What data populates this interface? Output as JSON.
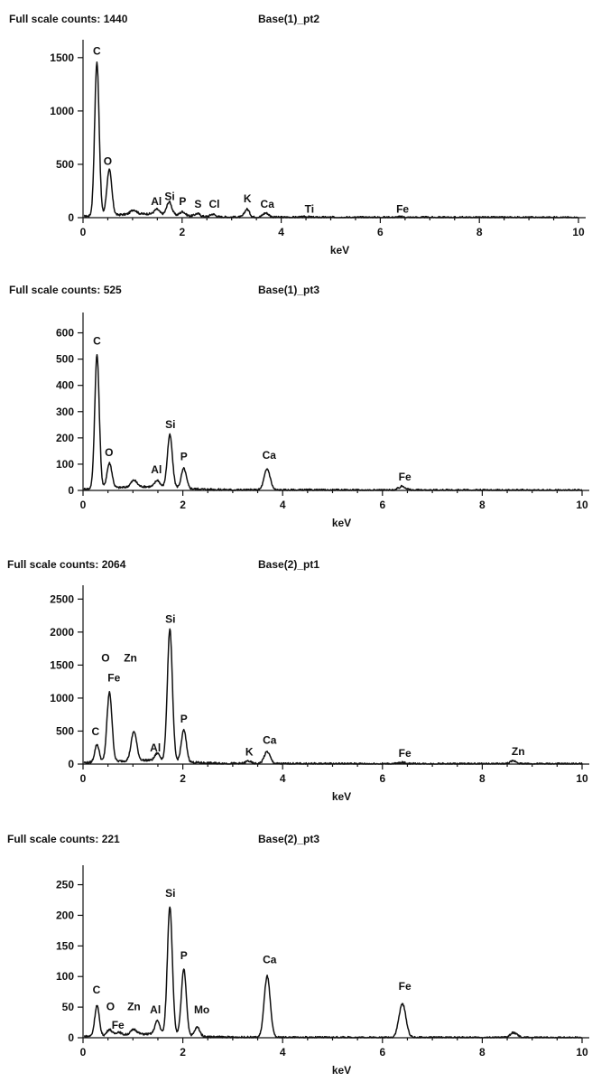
{
  "chart_data": [
    {
      "type": "line",
      "full_scale_label": "Full scale counts: 1440",
      "title": "Base(1)_pt2",
      "xlabel": "keV",
      "ylabel": "",
      "xlim": [
        0,
        10
      ],
      "ylim": [
        0,
        1600
      ],
      "xticks": [
        0,
        2,
        4,
        6,
        8,
        10
      ],
      "yticks": [
        0,
        500,
        1000,
        1500
      ],
      "peaks": [
        {
          "label": "C",
          "x": 0.28,
          "height": 1440,
          "width": 0.045
        },
        {
          "label": "O",
          "x": 0.53,
          "height": 430,
          "width": 0.05
        },
        {
          "label": "",
          "x": 1.02,
          "height": 40,
          "width": 0.06
        },
        {
          "label": "Al",
          "x": 1.49,
          "height": 45,
          "width": 0.05
        },
        {
          "label": "Si",
          "x": 1.74,
          "height": 120,
          "width": 0.05
        },
        {
          "label": "P",
          "x": 2.01,
          "height": 35,
          "width": 0.05
        },
        {
          "label": "S",
          "x": 2.31,
          "height": 25,
          "width": 0.05
        },
        {
          "label": "Cl",
          "x": 2.62,
          "height": 25,
          "width": 0.05
        },
        {
          "label": "K",
          "x": 3.31,
          "height": 75,
          "width": 0.05
        },
        {
          "label": "Ca",
          "x": 3.69,
          "height": 40,
          "width": 0.06
        },
        {
          "label": "Ti",
          "x": 4.51,
          "height": 5,
          "width": 0.06
        },
        {
          "label": "Fe",
          "x": 6.4,
          "height": 5,
          "width": 0.06
        }
      ],
      "annotations": [
        {
          "text": "C",
          "x": 0.28,
          "y": 1530
        },
        {
          "text": "O",
          "x": 0.5,
          "y": 495
        },
        {
          "text": "Al",
          "x": 1.48,
          "y": 118
        },
        {
          "text": "Si",
          "x": 1.75,
          "y": 165
        },
        {
          "text": "P",
          "x": 2.01,
          "y": 118
        },
        {
          "text": "S",
          "x": 2.32,
          "y": 95
        },
        {
          "text": "Cl",
          "x": 2.65,
          "y": 95
        },
        {
          "text": "K",
          "x": 3.32,
          "y": 145
        },
        {
          "text": "Ca",
          "x": 3.72,
          "y": 95
        },
        {
          "text": "Ti",
          "x": 4.57,
          "y": 45
        },
        {
          "text": "Fe",
          "x": 6.45,
          "y": 45
        }
      ]
    },
    {
      "type": "line",
      "full_scale_label": "Full scale counts: 525",
      "title": "Base(1)_pt3",
      "xlabel": "keV",
      "ylabel": "",
      "xlim": [
        0,
        10
      ],
      "ylim": [
        0,
        650
      ],
      "xticks": [
        0,
        2,
        4,
        6,
        8,
        10
      ],
      "yticks": [
        0,
        100,
        200,
        300,
        400,
        500,
        600
      ],
      "peaks": [
        {
          "label": "C",
          "x": 0.28,
          "height": 510,
          "width": 0.045
        },
        {
          "label": "O",
          "x": 0.53,
          "height": 95,
          "width": 0.05
        },
        {
          "label": "",
          "x": 1.02,
          "height": 25,
          "width": 0.06
        },
        {
          "label": "Al",
          "x": 1.49,
          "height": 25,
          "width": 0.05
        },
        {
          "label": "Si",
          "x": 1.74,
          "height": 200,
          "width": 0.05
        },
        {
          "label": "P",
          "x": 2.02,
          "height": 75,
          "width": 0.05
        },
        {
          "label": "Ca",
          "x": 3.69,
          "height": 80,
          "width": 0.06
        },
        {
          "label": "Fe",
          "x": 6.4,
          "height": 15,
          "width": 0.07
        }
      ],
      "annotations": [
        {
          "text": "C",
          "x": 0.28,
          "y": 555
        },
        {
          "text": "O",
          "x": 0.52,
          "y": 130
        },
        {
          "text": "Al",
          "x": 1.47,
          "y": 65
        },
        {
          "text": "Si",
          "x": 1.75,
          "y": 238
        },
        {
          "text": "P",
          "x": 2.02,
          "y": 115
        },
        {
          "text": "Ca",
          "x": 3.73,
          "y": 120
        },
        {
          "text": "Fe",
          "x": 6.45,
          "y": 38
        }
      ]
    },
    {
      "type": "line",
      "full_scale_label": "Full scale counts: 2064",
      "title": "Base(2)_pt1",
      "xlabel": "keV",
      "ylabel": "",
      "xlim": [
        0,
        10
      ],
      "ylim": [
        0,
        2600
      ],
      "xticks": [
        0,
        2,
        4,
        6,
        8,
        10
      ],
      "yticks": [
        0,
        500,
        1000,
        1500,
        2000,
        2500
      ],
      "peaks": [
        {
          "label": "C",
          "x": 0.28,
          "height": 270,
          "width": 0.045
        },
        {
          "label": "O",
          "x": 0.53,
          "height": 1050,
          "width": 0.05
        },
        {
          "label": "Zn",
          "x": 1.02,
          "height": 440,
          "width": 0.055
        },
        {
          "label": "Al",
          "x": 1.49,
          "height": 110,
          "width": 0.05
        },
        {
          "label": "Si",
          "x": 1.74,
          "height": 2000,
          "width": 0.05
        },
        {
          "label": "P",
          "x": 2.02,
          "height": 480,
          "width": 0.05
        },
        {
          "label": "K",
          "x": 3.31,
          "height": 40,
          "width": 0.05
        },
        {
          "label": "Ca",
          "x": 3.69,
          "height": 180,
          "width": 0.06
        },
        {
          "label": "Fe",
          "x": 6.4,
          "height": 20,
          "width": 0.07
        },
        {
          "label": "Zn",
          "x": 8.63,
          "height": 45,
          "width": 0.07
        }
      ],
      "annotations": [
        {
          "text": "C",
          "x": 0.25,
          "y": 440
        },
        {
          "text": "O",
          "x": 0.45,
          "y": 1550
        },
        {
          "text": "Fe",
          "x": 0.62,
          "y": 1250
        },
        {
          "text": "Zn",
          "x": 0.95,
          "y": 1550
        },
        {
          "text": "Al",
          "x": 1.45,
          "y": 190
        },
        {
          "text": "Si",
          "x": 1.75,
          "y": 2140
        },
        {
          "text": "P",
          "x": 2.02,
          "y": 630
        },
        {
          "text": "K",
          "x": 3.33,
          "y": 130
        },
        {
          "text": "Ca",
          "x": 3.74,
          "y": 310
        },
        {
          "text": "Fe",
          "x": 6.45,
          "y": 110
        },
        {
          "text": "Zn",
          "x": 8.72,
          "y": 140
        }
      ]
    },
    {
      "type": "line",
      "full_scale_label": "Full scale counts: 221",
      "title": "Base(2)_pt3",
      "xlabel": "keV",
      "ylabel": "",
      "xlim": [
        0,
        10
      ],
      "ylim": [
        0,
        270
      ],
      "xticks": [
        0,
        2,
        4,
        6,
        8,
        10
      ],
      "yticks": [
        0,
        50,
        100,
        150,
        200,
        250
      ],
      "peaks": [
        {
          "label": "C",
          "x": 0.28,
          "height": 50,
          "width": 0.045
        },
        {
          "label": "O",
          "x": 0.53,
          "height": 10,
          "width": 0.05
        },
        {
          "label": "Fe",
          "x": 0.71,
          "height": 5,
          "width": 0.05
        },
        {
          "label": "Zn",
          "x": 1.02,
          "height": 8,
          "width": 0.06
        },
        {
          "label": "Al",
          "x": 1.49,
          "height": 22,
          "width": 0.05
        },
        {
          "label": "Si",
          "x": 1.74,
          "height": 210,
          "width": 0.05
        },
        {
          "label": "P",
          "x": 2.02,
          "height": 108,
          "width": 0.05
        },
        {
          "label": "Mo",
          "x": 2.29,
          "height": 15,
          "width": 0.05
        },
        {
          "label": "Ca",
          "x": 3.69,
          "height": 100,
          "width": 0.06
        },
        {
          "label": "Fe",
          "x": 6.4,
          "height": 55,
          "width": 0.07
        },
        {
          "label": "",
          "x": 8.63,
          "height": 8,
          "width": 0.07
        }
      ],
      "annotations": [
        {
          "text": "C",
          "x": 0.27,
          "y": 72
        },
        {
          "text": "O",
          "x": 0.55,
          "y": 45
        },
        {
          "text": "Fe",
          "x": 0.7,
          "y": 15
        },
        {
          "text": "Zn",
          "x": 1.02,
          "y": 45
        },
        {
          "text": "Al",
          "x": 1.45,
          "y": 40
        },
        {
          "text": "Si",
          "x": 1.75,
          "y": 230
        },
        {
          "text": "P",
          "x": 2.02,
          "y": 128
        },
        {
          "text": "Mo",
          "x": 2.38,
          "y": 40
        },
        {
          "text": "Ca",
          "x": 3.74,
          "y": 122
        },
        {
          "text": "Fe",
          "x": 6.45,
          "y": 78
        }
      ]
    }
  ]
}
